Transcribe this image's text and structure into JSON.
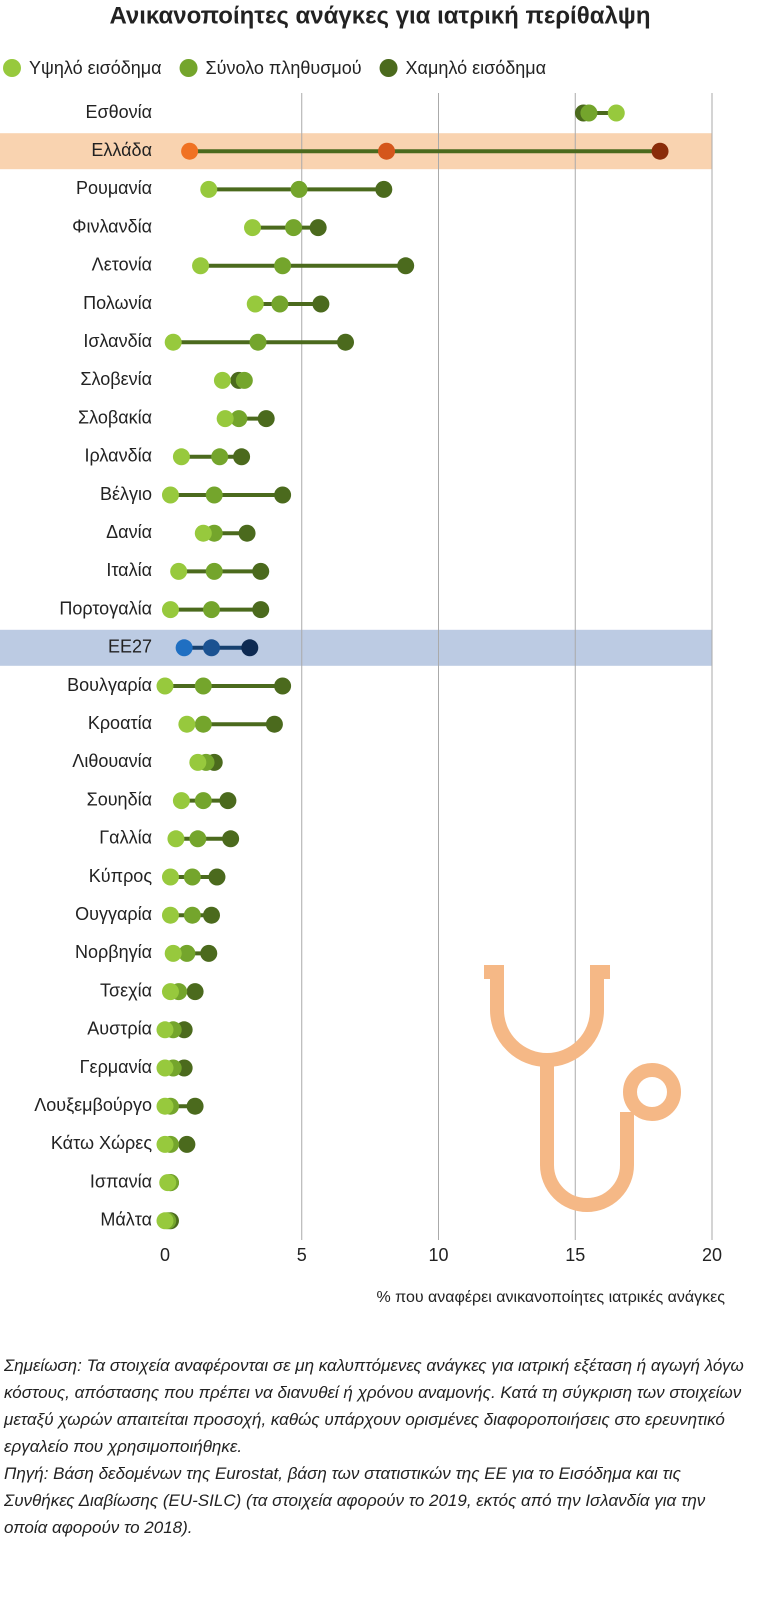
{
  "chart_data": {
    "type": "dumbbell",
    "title": "Ανικανοποίητες ανάγκες για ιατρική περίθαλψη",
    "x_label": "% που αναφέρει ανικανοποίητες ιατρικές ανάγκες",
    "categories": [
      "Εσθονία",
      "Ελλάδα",
      "Ρουμανία",
      "Φινλανδία",
      "Λετονία",
      "Πολωνία",
      "Ισλανδία",
      "Σλοβενία",
      "Σλοβακία",
      "Ιρλανδία",
      "Βέλγιο",
      "Δανία",
      "Ιταλία",
      "Πορτογαλία",
      "ΕΕ27",
      "Βουλγαρία",
      "Κροατία",
      "Λιθουανία",
      "Σουηδία",
      "Γαλλία",
      "Κύπρος",
      "Ουγγαρία",
      "Νορβηγία",
      "Τσεχία",
      "Αυστρία",
      "Γερμανία",
      "Λουξεμβούργο",
      "Κάτω Χώρες",
      "Ισπανία",
      "Μάλτα"
    ],
    "series": [
      {
        "name": "Υψηλό εισόδημα",
        "color": "#97c93d",
        "values": [
          16.5,
          0.9,
          1.6,
          3.2,
          1.3,
          3.3,
          0.3,
          2.1,
          2.2,
          0.6,
          0.2,
          1.4,
          0.5,
          0.2,
          0.7,
          0.0,
          0.8,
          1.2,
          0.6,
          0.4,
          0.2,
          0.2,
          0.3,
          0.2,
          0.0,
          0.0,
          0.0,
          0.0,
          0.1,
          0.0
        ]
      },
      {
        "name": "Σύνολο πληθυσμού",
        "color": "#74a52c",
        "values": [
          15.5,
          8.1,
          4.9,
          4.7,
          4.3,
          4.2,
          3.4,
          2.9,
          2.7,
          2.0,
          1.8,
          1.8,
          1.8,
          1.7,
          1.7,
          1.4,
          1.4,
          1.5,
          1.4,
          1.2,
          1.0,
          1.0,
          0.8,
          0.5,
          0.3,
          0.3,
          0.2,
          0.2,
          0.2,
          0.1
        ]
      },
      {
        "name": "Χαμηλό εισόδημα",
        "color": "#4b6a1d",
        "values": [
          15.3,
          18.1,
          8.0,
          5.6,
          8.8,
          5.7,
          6.6,
          2.7,
          3.7,
          2.8,
          4.3,
          3.0,
          3.5,
          3.5,
          3.1,
          4.3,
          4.0,
          1.8,
          2.3,
          2.4,
          1.9,
          1.7,
          1.6,
          1.1,
          0.7,
          0.7,
          1.1,
          0.8,
          0.2,
          0.2
        ]
      }
    ],
    "line_color": "#4b6a1d",
    "highlights": [
      {
        "category": "Ελλάδα",
        "band": "#f9d3b0",
        "line": "#4b6a1d",
        "colors": [
          "#f07223",
          "#d4561b",
          "#8a2c09"
        ]
      },
      {
        "category": "ΕΕ27",
        "band": "#bccbe3",
        "line": "#16406e",
        "colors": [
          "#1f6fc2",
          "#1b5291",
          "#0e2a52"
        ]
      }
    ],
    "xlim": [
      0,
      20
    ],
    "xticks": [
      0,
      5,
      10,
      15,
      20
    ],
    "grid": true,
    "notes": [
      "Σημείωση: Τα στοιχεία αναφέρονται σε μη καλυπτόμενες ανάγκες για ιατρική εξέταση ή αγωγή λόγω κόστους, απόστασης που πρέπει να διανυθεί ή χρόνου αναμονής. Κατά τη σύγκριση των στοιχείων μεταξύ χωρών απαιτείται προσοχή, καθώς υπάρχουν ορισμένες διαφοροποιήσεις στο ερευνητικό εργαλείο που χρησιμοποιήθηκε.",
      "Πηγή: Βάση δεδομένων της Eurostat, βάση των στατιστικών της ΕΕ για το Εισόδημα και τις Συνθήκες Διαβίωσης (EU-SILC) (τα στοιχεία αφορούν το 2019, εκτός από την Ισλανδία για την οποία αφορούν το 2018)."
    ]
  }
}
